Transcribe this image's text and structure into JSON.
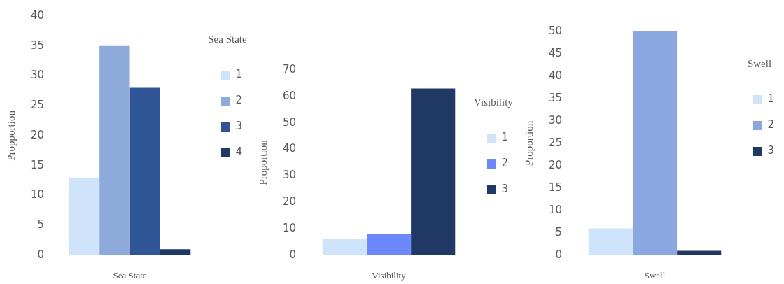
{
  "chart_data": [
    {
      "type": "bar",
      "categories": [
        null
      ],
      "xlabel": "Sea State",
      "ylabel": "Propportion",
      "legend_title": "Sea State",
      "legend": "right",
      "grid": false,
      "ylim": [
        0,
        40
      ],
      "yticks": [
        0,
        5,
        10,
        15,
        20,
        25,
        30,
        35,
        40
      ],
      "series": [
        {
          "name": "1",
          "color": "#cfe4fa",
          "values": [
            13
          ]
        },
        {
          "name": "2",
          "color": "#8eaadb",
          "values": [
            35
          ]
        },
        {
          "name": "3",
          "color": "#2f5597",
          "values": [
            28
          ]
        },
        {
          "name": "4",
          "color": "#1f3864",
          "values": [
            1
          ]
        }
      ]
    },
    {
      "type": "bar",
      "categories": [
        null
      ],
      "xlabel": "Visibility",
      "ylabel": "Proportion",
      "legend_title": "Visibility",
      "legend": "right",
      "grid": false,
      "ylim": [
        0,
        70
      ],
      "yticks": [
        0,
        10,
        20,
        30,
        40,
        50,
        60,
        70
      ],
      "series": [
        {
          "name": "1",
          "color": "#cfe4fa",
          "values": [
            6
          ]
        },
        {
          "name": "2",
          "color": "#6d87fc",
          "values": [
            8
          ]
        },
        {
          "name": "3",
          "color": "#203864",
          "values": [
            63
          ]
        }
      ]
    },
    {
      "type": "bar",
      "categories": [
        null
      ],
      "xlabel": "Swell",
      "ylabel": "Proportion",
      "legend_title": "Swell",
      "legend": "right",
      "grid": false,
      "ylim": [
        0,
        50
      ],
      "yticks": [
        0,
        5,
        10,
        15,
        20,
        25,
        30,
        35,
        40,
        45,
        50
      ],
      "series": [
        {
          "name": "1",
          "color": "#cfe4fa",
          "values": [
            6
          ]
        },
        {
          "name": "2",
          "color": "#8aa8df",
          "values": [
            50
          ]
        },
        {
          "name": "3",
          "color": "#203864",
          "values": [
            1
          ]
        }
      ]
    }
  ]
}
